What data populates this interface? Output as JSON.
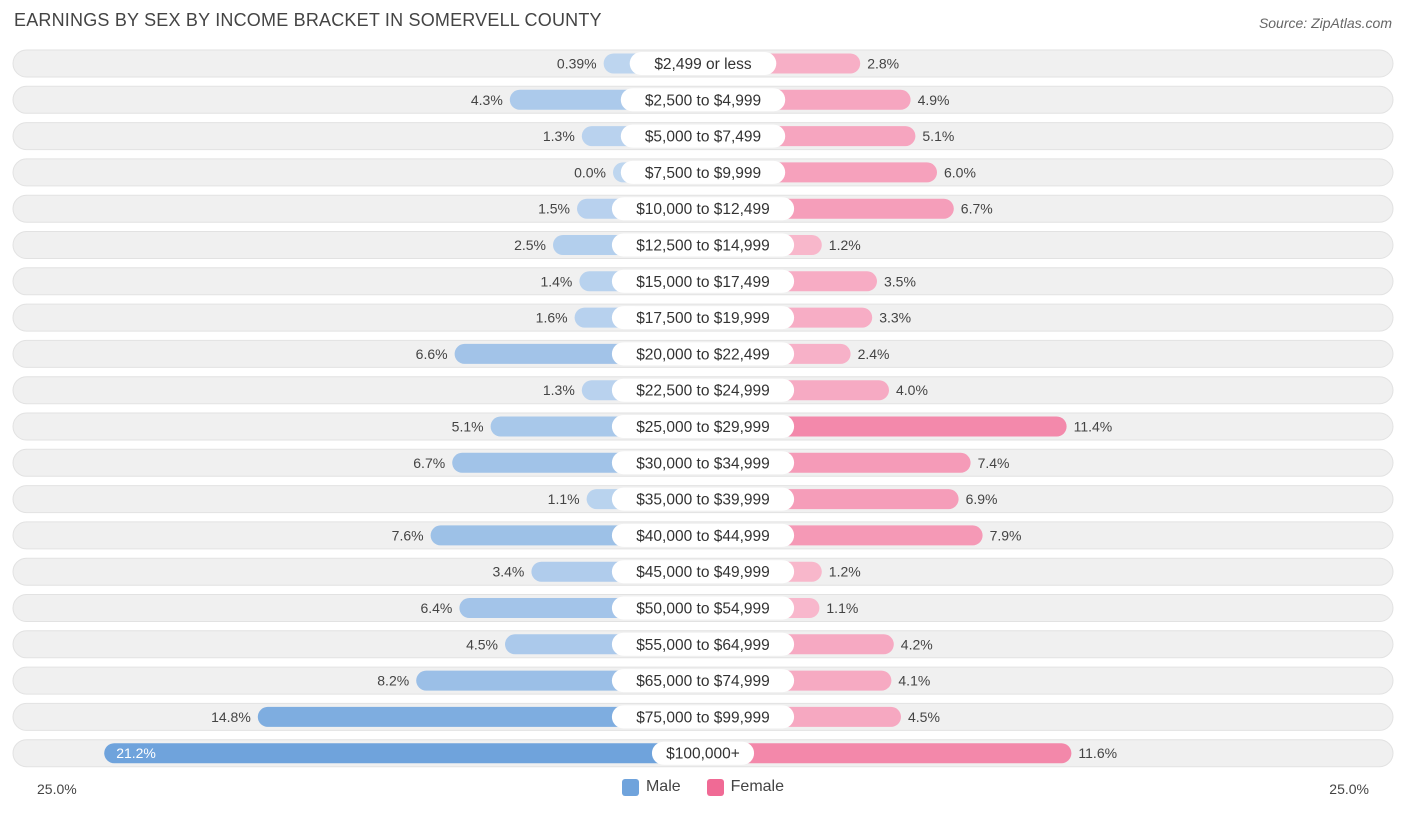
{
  "title": "EARNINGS BY SEX BY INCOME BRACKET IN SOMERVELL COUNTY",
  "source": "Source: ZipAtlas.com",
  "colors": {
    "male": "#6fa3dc",
    "female": "#f06a95",
    "row_bg": "#f0f0f0"
  },
  "legend": {
    "male_label": "Male",
    "female_label": "Female"
  },
  "axis": {
    "left_label": "25.0%",
    "right_label": "25.0%"
  },
  "chart_data": {
    "type": "bar",
    "title": "EARNINGS BY SEX BY INCOME BRACKET IN SOMERVELL COUNTY",
    "orientation": "diverging-horizontal",
    "xlim": [
      -25,
      25
    ],
    "categories": [
      "$2,499 or less",
      "$2,500 to $4,999",
      "$5,000 to $7,499",
      "$7,500 to $9,999",
      "$10,000 to $12,499",
      "$12,500 to $14,999",
      "$15,000 to $17,499",
      "$17,500 to $19,999",
      "$20,000 to $22,499",
      "$22,500 to $24,999",
      "$25,000 to $29,999",
      "$30,000 to $34,999",
      "$35,000 to $39,999",
      "$40,000 to $44,999",
      "$45,000 to $49,999",
      "$50,000 to $54,999",
      "$55,000 to $64,999",
      "$65,000 to $74,999",
      "$75,000 to $99,999",
      "$100,000+"
    ],
    "series": [
      {
        "name": "Male",
        "values": [
          0.39,
          4.3,
          1.3,
          0.0,
          1.5,
          2.5,
          1.4,
          1.6,
          6.6,
          1.3,
          5.1,
          6.7,
          1.1,
          7.6,
          3.4,
          6.4,
          4.5,
          8.2,
          14.8,
          21.2
        ],
        "labels": [
          "0.39%",
          "4.3%",
          "1.3%",
          "0.0%",
          "1.5%",
          "2.5%",
          "1.4%",
          "1.6%",
          "6.6%",
          "1.3%",
          "5.1%",
          "6.7%",
          "1.1%",
          "7.6%",
          "3.4%",
          "6.4%",
          "4.5%",
          "8.2%",
          "14.8%",
          "21.2%"
        ]
      },
      {
        "name": "Female",
        "values": [
          2.8,
          4.9,
          5.1,
          6.0,
          6.7,
          1.2,
          3.5,
          3.3,
          2.4,
          4.0,
          11.4,
          7.4,
          6.9,
          7.9,
          1.2,
          1.1,
          4.2,
          4.1,
          4.5,
          11.6
        ],
        "labels": [
          "2.8%",
          "4.9%",
          "5.1%",
          "6.0%",
          "6.7%",
          "1.2%",
          "3.5%",
          "3.3%",
          "2.4%",
          "4.0%",
          "11.4%",
          "7.4%",
          "6.9%",
          "7.9%",
          "1.2%",
          "1.1%",
          "4.2%",
          "4.1%",
          "4.5%",
          "11.6%"
        ]
      }
    ]
  }
}
